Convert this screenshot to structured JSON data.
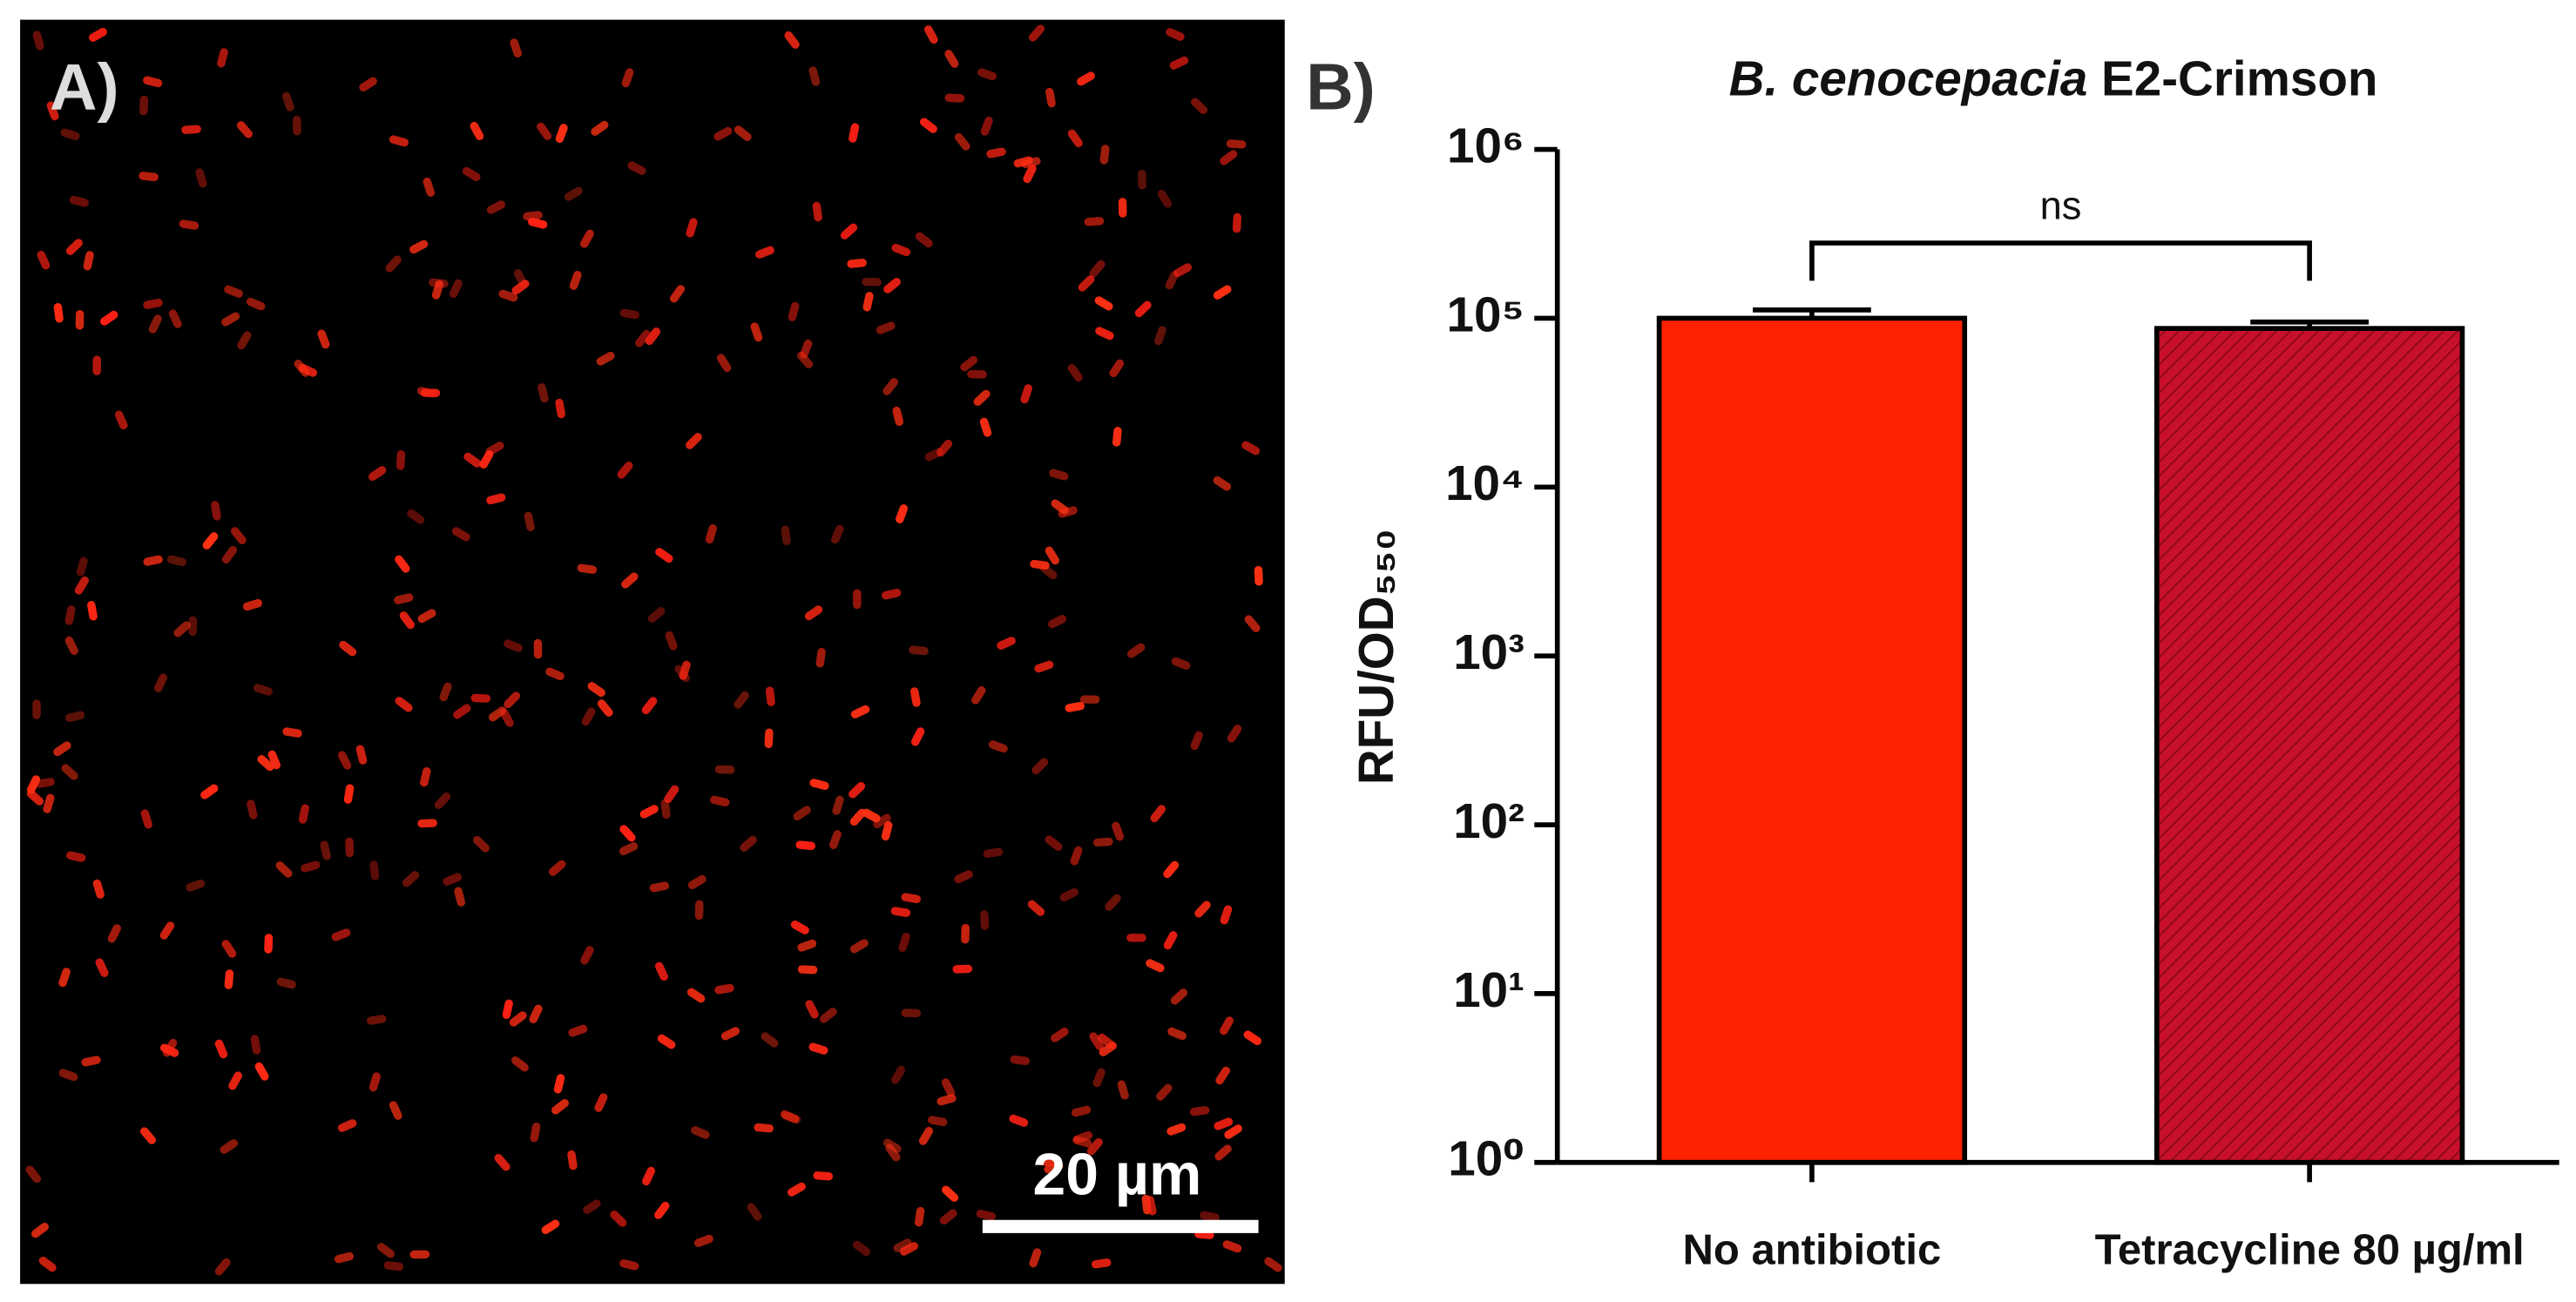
{
  "panel_a": {
    "label": "A)",
    "scale_bar": "20 µm"
  },
  "chart_data": {
    "type": "bar",
    "panel_label": "B)",
    "title": [
      "B. cenocepacia",
      "E2-Crimson"
    ],
    "ylabel": "RFU/OD₅₅₀",
    "categories": [
      "No antibiotic",
      "Tetracycline 80 µg/ml"
    ],
    "values": [
      100000,
      87000
    ],
    "errors": [
      12000,
      8000
    ],
    "colors": [
      "#ff2200",
      "#c8102a"
    ],
    "hatch": [
      false,
      true
    ],
    "log_scale": true,
    "ylim": [
      1,
      1000000
    ],
    "yticks": [
      {
        "value": 1,
        "label": "10⁰"
      },
      {
        "value": 10,
        "label": "10¹"
      },
      {
        "value": 100,
        "label": "10²"
      },
      {
        "value": 1000,
        "label": "10³"
      },
      {
        "value": 10000,
        "label": "10⁴"
      },
      {
        "value": 100000,
        "label": "10⁵"
      },
      {
        "value": 1000000,
        "label": "10⁶"
      }
    ],
    "annotation": "ns"
  }
}
